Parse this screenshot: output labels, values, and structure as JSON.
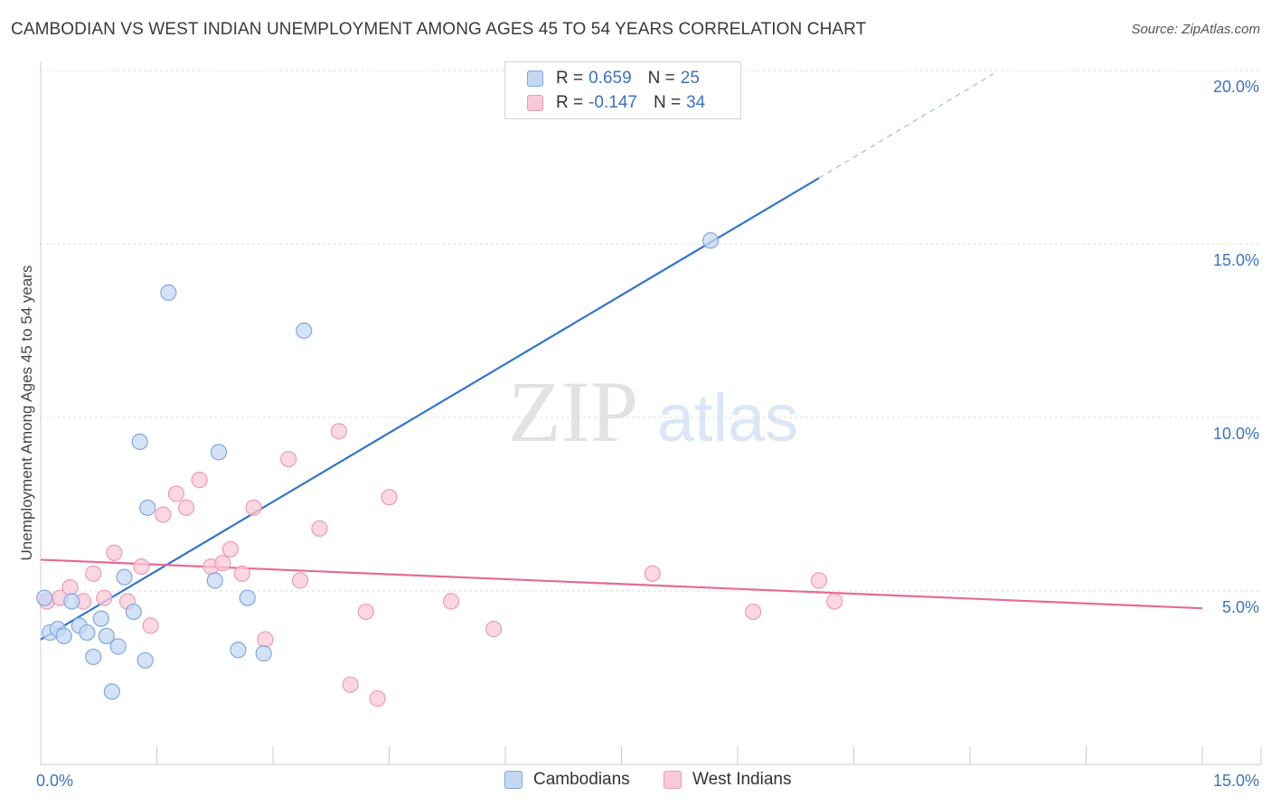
{
  "title": "CAMBODIAN VS WEST INDIAN UNEMPLOYMENT AMONG AGES 45 TO 54 YEARS CORRELATION CHART",
  "source": "Source: ZipAtlas.com",
  "watermark": {
    "zip": "ZIP",
    "atlas": "atlas"
  },
  "colors": {
    "cambodian_fill": "#c5d8f2",
    "cambodian_stroke": "#7fa8e0",
    "cambodian_line": "#2f74d0",
    "westindian_fill": "#f9c9d8",
    "westindian_stroke": "#ee9ab6",
    "westindian_line": "#e56b93",
    "tick_label": "#3a72c4",
    "grid": "#dddddd"
  },
  "legend": {
    "rows": [
      {
        "r_label": "R =",
        "r_value": "0.659",
        "n_label": "N =",
        "n_value": "25"
      },
      {
        "r_label": "R =",
        "r_value": "-0.147",
        "n_label": "N =",
        "n_value": "34"
      }
    ]
  },
  "bottom_legend": {
    "cambodians": "Cambodians",
    "west_indians": "West Indians"
  },
  "chart_data": {
    "type": "scatter",
    "title": "CAMBODIAN VS WEST INDIAN UNEMPLOYMENT AMONG AGES 45 TO 54 YEARS CORRELATION CHART",
    "xlabel": "",
    "ylabel": "Unemployment Among Ages 45 to 54 years",
    "xlim": [
      0,
      15
    ],
    "ylim": [
      0,
      20
    ],
    "x_tick_labels": [
      {
        "value": 0,
        "label": "0.0%"
      },
      {
        "value": 15,
        "label": "15.0%"
      }
    ],
    "y_ticks": [
      {
        "value": 5,
        "label": "5.0%"
      },
      {
        "value": 10,
        "label": "10.0%"
      },
      {
        "value": 15,
        "label": "15.0%"
      },
      {
        "value": 20,
        "label": "20.0%"
      }
    ],
    "series": [
      {
        "name": "Cambodians",
        "points": [
          [
            0.05,
            4.8
          ],
          [
            0.12,
            3.8
          ],
          [
            0.22,
            3.9
          ],
          [
            0.3,
            3.7
          ],
          [
            0.4,
            4.7
          ],
          [
            0.5,
            4.0
          ],
          [
            0.6,
            3.8
          ],
          [
            0.68,
            3.1
          ],
          [
            0.78,
            4.2
          ],
          [
            0.85,
            3.7
          ],
          [
            0.92,
            2.1
          ],
          [
            1.0,
            3.4
          ],
          [
            1.08,
            5.4
          ],
          [
            1.2,
            4.4
          ],
          [
            1.35,
            3.0
          ],
          [
            1.28,
            9.3
          ],
          [
            1.38,
            7.4
          ],
          [
            1.65,
            13.6
          ],
          [
            2.25,
            5.3
          ],
          [
            2.3,
            9.0
          ],
          [
            2.55,
            3.3
          ],
          [
            2.67,
            4.8
          ],
          [
            2.88,
            3.2
          ],
          [
            3.4,
            12.5
          ],
          [
            8.65,
            15.1
          ]
        ],
        "trend": {
          "x0": 0.0,
          "y0": 3.6,
          "x1": 10.05,
          "y1": 16.9,
          "x_dash_end": 12.3,
          "y_dash_end": 19.9
        }
      },
      {
        "name": "West Indians",
        "points": [
          [
            0.08,
            4.7
          ],
          [
            0.25,
            4.8
          ],
          [
            0.38,
            5.1
          ],
          [
            0.55,
            4.7
          ],
          [
            0.68,
            5.5
          ],
          [
            0.82,
            4.8
          ],
          [
            0.95,
            6.1
          ],
          [
            1.12,
            4.7
          ],
          [
            1.3,
            5.7
          ],
          [
            1.42,
            4.0
          ],
          [
            1.58,
            7.2
          ],
          [
            1.75,
            7.8
          ],
          [
            1.88,
            7.4
          ],
          [
            2.05,
            8.2
          ],
          [
            2.2,
            5.7
          ],
          [
            2.35,
            5.8
          ],
          [
            2.45,
            6.2
          ],
          [
            2.6,
            5.5
          ],
          [
            2.75,
            7.4
          ],
          [
            2.9,
            3.6
          ],
          [
            3.2,
            8.8
          ],
          [
            3.35,
            5.3
          ],
          [
            3.6,
            6.8
          ],
          [
            3.85,
            9.6
          ],
          [
            4.0,
            2.3
          ],
          [
            4.2,
            4.4
          ],
          [
            4.35,
            1.9
          ],
          [
            4.5,
            7.7
          ],
          [
            5.3,
            4.7
          ],
          [
            5.85,
            3.9
          ],
          [
            7.9,
            5.5
          ],
          [
            9.2,
            4.4
          ],
          [
            10.05,
            5.3
          ],
          [
            10.25,
            4.7
          ]
        ],
        "trend": {
          "x0": 0.0,
          "y0": 5.9,
          "x1": 15.0,
          "y1": 4.5
        }
      }
    ]
  }
}
